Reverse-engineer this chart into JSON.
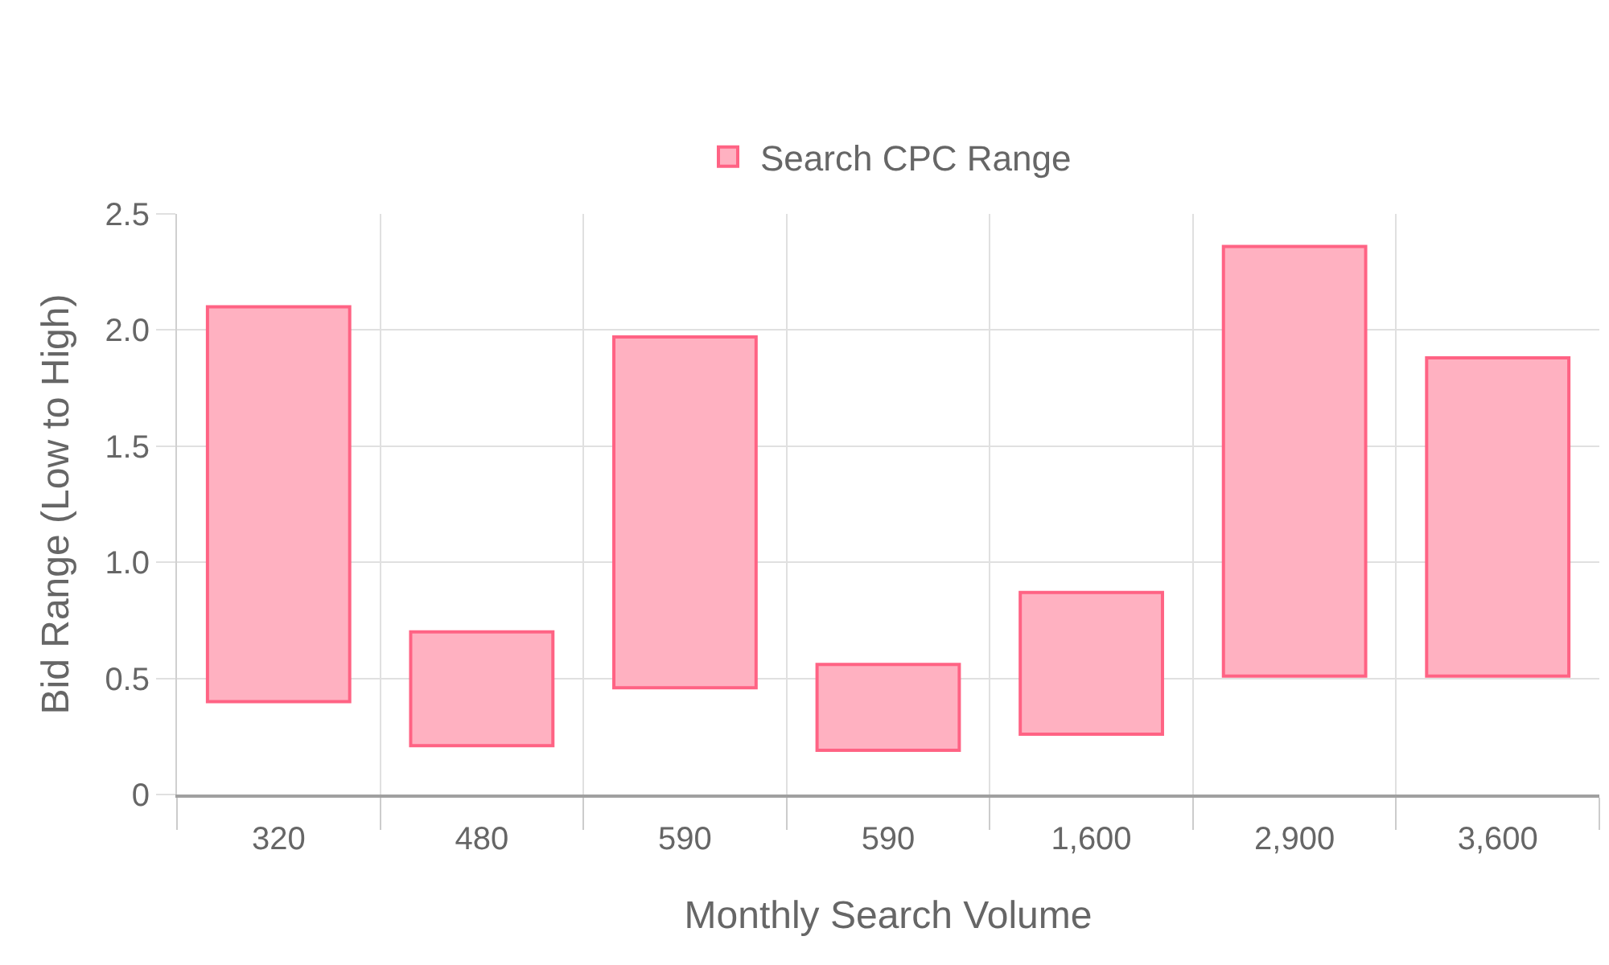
{
  "chart_data": {
    "type": "bar",
    "categories": [
      "320",
      "480",
      "590",
      "590",
      "1,600",
      "2,900",
      "3,600"
    ],
    "series": [
      {
        "name": "Search CPC Range",
        "color": "#ffb1c1",
        "values": [
          1.7,
          0.49,
          1.51,
          0.37,
          0.61,
          1.85,
          1.37
        ],
        "base": [
          0.4,
          0.21,
          0.46,
          0.19,
          0.26,
          0.51,
          0.51
        ]
      }
    ],
    "xlabel": "Monthly Search Volume",
    "ylabel": "Bid Range (Low to High)",
    "ylim": [
      0,
      2.5
    ],
    "yticks": [
      {
        "value": 0,
        "label": "0"
      },
      {
        "value": 0.5,
        "label": "0.5"
      },
      {
        "value": 1,
        "label": "1.0"
      },
      {
        "value": 1.5,
        "label": "1.5"
      },
      {
        "value": 2,
        "label": "2.0"
      },
      {
        "value": 2.5,
        "label": "2.5"
      }
    ],
    "grid": true,
    "legend": "top"
  }
}
